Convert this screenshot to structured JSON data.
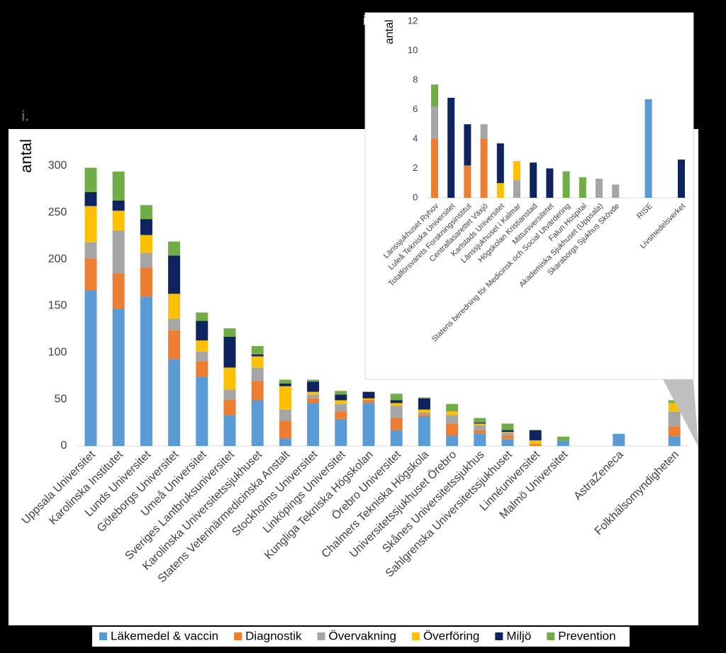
{
  "chart_data": [
    {
      "type": "bar",
      "stacked": true,
      "panel_label": "i.",
      "y_label": "antal",
      "categories": [
        "Uppsala Universitet",
        "Karolinska Institutet",
        "Lunds Universitet",
        "Göteborgs Universitet",
        "Umeå Universitet",
        "Sveriges Lantbruksuniversitet",
        "Karolinska Universitetssjukhuset",
        "Statens Veterinärmedicinska Anstalt",
        "Stockholms Universitet",
        "Linköpings Universitet",
        "Kungliga Tekniska Högskolan",
        "Örebro Universitet",
        "Chalmers Tekniska Högskola",
        "Universitetssjukhuset Örebro",
        "Skånes Universitetssjukhus",
        "Sahlgrenska Universitetssjukhuset",
        "Linnéuniversitet",
        "Malmö Universitet",
        null,
        "AstraZeneca",
        null,
        "Folkhälsomyndigheten"
      ],
      "series": [
        {
          "name": "Läkemedel & vaccin",
          "color": "#5b9bd5",
          "values": [
            167,
            147,
            160,
            93,
            74,
            33,
            49,
            8,
            46,
            29,
            46,
            17,
            32,
            11,
            13,
            7,
            0,
            6,
            null,
            13,
            null,
            10
          ]
        },
        {
          "name": "Diagnostik",
          "color": "#ed7d31",
          "values": [
            34,
            38,
            31,
            31,
            17,
            17,
            21,
            19,
            5,
            8,
            3,
            13,
            2,
            13,
            4,
            4,
            2,
            0,
            null,
            0,
            null,
            11
          ]
        },
        {
          "name": "Övervakning",
          "color": "#a5a5a5",
          "values": [
            17,
            46,
            16,
            12,
            10,
            10,
            14,
            12,
            4,
            8,
            1,
            13,
            2,
            9,
            5,
            3,
            0,
            0,
            null,
            0,
            null,
            16
          ]
        },
        {
          "name": "Överföring",
          "color": "#ffc000",
          "values": [
            39,
            21,
            19,
            27,
            12,
            24,
            12,
            25,
            3,
            4,
            1,
            3,
            3,
            4,
            2,
            1,
            4,
            0,
            null,
            0,
            null,
            9
          ]
        },
        {
          "name": "Miljö",
          "color": "#0e2461",
          "values": [
            15,
            11,
            17,
            41,
            21,
            33,
            2,
            3,
            11,
            6,
            7,
            3,
            12,
            0,
            1,
            2,
            11,
            0,
            null,
            0,
            null,
            0
          ]
        },
        {
          "name": "Prevention",
          "color": "#70ad47",
          "values": [
            26,
            31,
            15,
            15,
            9,
            9,
            9,
            4,
            2,
            4,
            0,
            7,
            1,
            8,
            5,
            7,
            0,
            4,
            null,
            0,
            null,
            3
          ]
        }
      ],
      "ylim": [
        0,
        300
      ],
      "yticks": [
        0,
        50,
        100,
        150,
        200,
        250,
        300
      ],
      "grid": false,
      "legend": "bottom"
    },
    {
      "type": "bar",
      "stacked": true,
      "panel_label": "ii.",
      "y_label": "antal",
      "categories": [
        "Länssjukhuset Ryhov",
        "Luleå Tekniska Universitet",
        "Totalförsvarets Forskningsinstitut",
        "Centrallasarettet Växjö",
        "Karlstads Universitet",
        "Länssjukhuset i Kalmar",
        "Högskolan Kristianstad",
        "Mittuniversitetet",
        "Statens beredning för Medicinsk och Social Utvärdering",
        "Falun Hospital",
        "Akademiska Sjukhuset (Uppsala)",
        "Skaraborgs Sjukhus Skövde",
        null,
        "RISE",
        null,
        "Livsmedelsverket"
      ],
      "series": [
        {
          "color": "#5b9bd5",
          "values": [
            0,
            0,
            0,
            0,
            0,
            0,
            0,
            0,
            0,
            0,
            0,
            0,
            null,
            6.7,
            null,
            0
          ]
        },
        {
          "color": "#ed7d31",
          "values": [
            4,
            0,
            2.2,
            4,
            0,
            0,
            0,
            0,
            0,
            0,
            0,
            0,
            null,
            0,
            null,
            0
          ]
        },
        {
          "color": "#a5a5a5",
          "values": [
            2.2,
            0,
            0,
            1,
            0,
            1.2,
            0,
            0,
            0,
            0,
            1.3,
            0.9,
            null,
            0,
            null,
            0
          ]
        },
        {
          "color": "#ffc000",
          "values": [
            0,
            0,
            0,
            0,
            1,
            1.3,
            0,
            0,
            0,
            0,
            0,
            0,
            null,
            0,
            null,
            0
          ]
        },
        {
          "color": "#0e2461",
          "values": [
            0,
            6.8,
            2.8,
            0,
            2.7,
            0,
            2.4,
            2,
            0,
            0,
            0,
            0,
            null,
            0,
            null,
            2.6
          ]
        },
        {
          "color": "#70ad47",
          "values": [
            1.5,
            0,
            0,
            0,
            0,
            0,
            0,
            0,
            1.8,
            1.4,
            0,
            0,
            null,
            0,
            null,
            0
          ]
        }
      ],
      "ylim": [
        0,
        12
      ],
      "yticks": [
        0,
        2,
        4,
        6,
        8,
        10,
        12
      ],
      "grid": false
    }
  ]
}
